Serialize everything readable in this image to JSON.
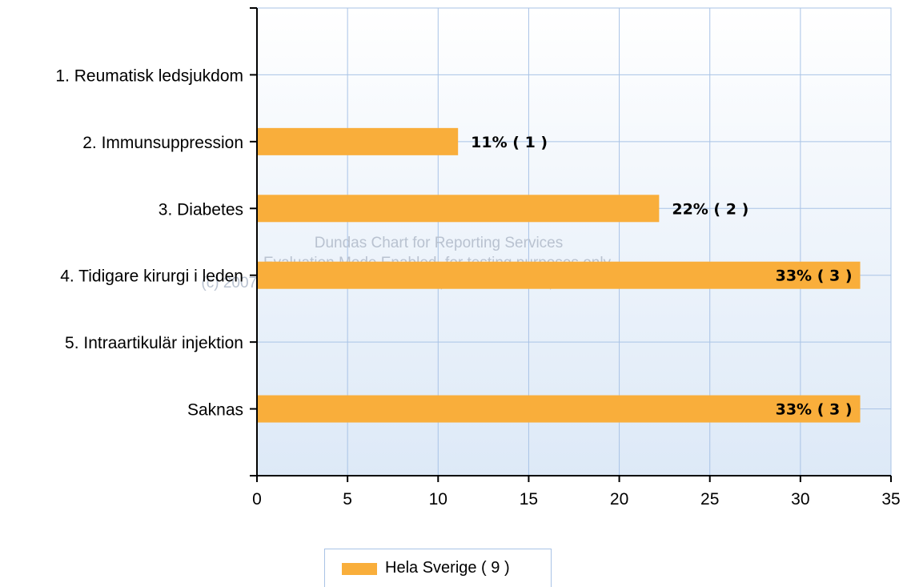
{
  "chart_data": {
    "type": "bar",
    "orientation": "horizontal",
    "categories": [
      "1. Reumatisk ledsjukdom",
      "2. Immunsuppression",
      "3. Diabetes",
      "4. Tidigare kirurgi i leden",
      "5. Intraartikulär injektion",
      "Saknas"
    ],
    "series": [
      {
        "name": "Hela Sverige ( 9 )",
        "values": [
          0,
          11.1,
          22.2,
          33.3,
          0,
          33.3
        ],
        "data_labels": [
          "",
          "11% ( 1 )",
          "22% ( 2 )",
          "33% ( 3 )",
          "",
          "33% ( 3 )"
        ]
      }
    ],
    "xlim": [
      0,
      35
    ],
    "xticks": [
      "0",
      "5",
      "10",
      "15",
      "20",
      "25",
      "30",
      "35"
    ],
    "grid": true,
    "legend_position": "bottom",
    "bar_color": "#f9ae3b",
    "watermark": [
      "Dundas Chart for Reporting Services",
      "Evaluation Mode Enabled, for testing purposes only",
      "(c) 2007 Dundas Data Visualization, Inc. and others, www.dundas.com"
    ]
  }
}
